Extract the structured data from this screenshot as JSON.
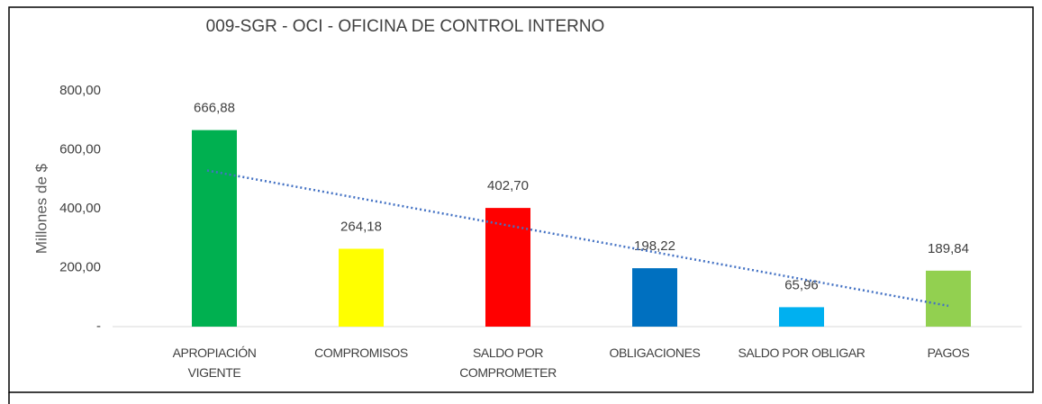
{
  "chart_data": {
    "type": "bar",
    "title": "009-SGR - OCI - OFICINA DE CONTROL INTERNO",
    "y_label": "Millones de $",
    "categories": [
      "APROPIACIÓN\nVIGENTE",
      "COMPROMISOS",
      "SALDO POR\nCOMPROMETER",
      "OBLIGACIONES",
      "SALDO POR OBLIGAR",
      "PAGOS"
    ],
    "values": [
      666.88,
      264.18,
      402.7,
      198.22,
      65.96,
      189.84
    ],
    "value_labels": [
      "666,88",
      "264,18",
      "402,70",
      "198,22",
      "65,96",
      "189,84"
    ],
    "colors": [
      "#00b050",
      "#ffff00",
      "#ff0000",
      "#0070c0",
      "#00b0f0",
      "#92d050"
    ],
    "ylim": [
      0,
      800
    ],
    "yticks": [
      {
        "value": 0,
        "label": "-"
      },
      {
        "value": 200,
        "label": "200,00"
      },
      {
        "value": 400,
        "label": "400,00"
      },
      {
        "value": 600,
        "label": "600,00"
      },
      {
        "value": 800,
        "label": "800,00"
      }
    ],
    "trendline": true,
    "trendline_color": "#4472c4",
    "grid": false
  }
}
